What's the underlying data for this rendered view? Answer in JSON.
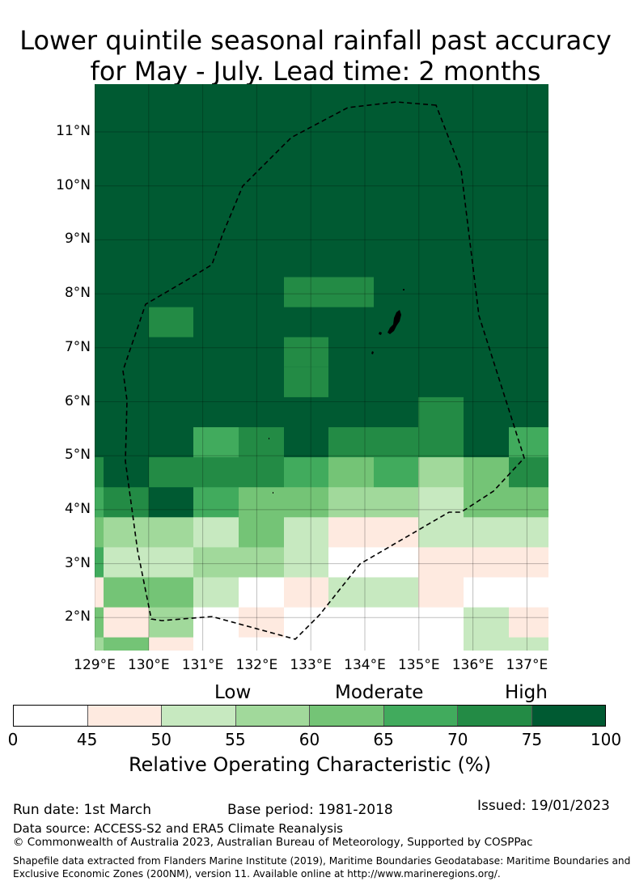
{
  "title": [
    "Lower quintile seasonal rainfall past accuracy",
    "for May - July. Lead time: 2 months"
  ],
  "axes": {
    "lat_labels": [
      "11°N",
      "10°N",
      "9°N",
      "8°N",
      "7°N",
      "6°N",
      "5°N",
      "4°N",
      "3°N",
      "2°N"
    ],
    "lon_labels": [
      "129°E",
      "130°E",
      "131°E",
      "132°E",
      "133°E",
      "134°E",
      "135°E",
      "136°E",
      "137°E"
    ]
  },
  "map": {
    "colors": [
      "#ffffff",
      "#feeae0",
      "#c7e9c0",
      "#a1d99b",
      "#74c476",
      "#41ab5d",
      "#238b45",
      "#005a32"
    ],
    "default_class": 7,
    "upper_patches": [
      {
        "row": -5,
        "cols": [
          5,
          6
        ],
        "class": 6
      },
      {
        "row": -4,
        "cols": [
          2
        ],
        "class": 6
      },
      {
        "row": -3,
        "cols": [
          5
        ],
        "class": 6
      },
      {
        "row": -2,
        "cols": [
          5
        ],
        "class": 6
      },
      {
        "row": -1,
        "cols": [
          8
        ],
        "class": 6
      }
    ],
    "grid_classes": [
      [
        7,
        7,
        7,
        5,
        6,
        7,
        6,
        6,
        6,
        7,
        5
      ],
      [
        6,
        7,
        6,
        6,
        6,
        5,
        4,
        5,
        3,
        4,
        6
      ],
      [
        5,
        6,
        7,
        5,
        4,
        4,
        3,
        3,
        2,
        4,
        4
      ],
      [
        4,
        3,
        3,
        2,
        4,
        2,
        1,
        1,
        2,
        2,
        2
      ],
      [
        5,
        2,
        2,
        3,
        3,
        2,
        0,
        0,
        1,
        1,
        1
      ],
      [
        1,
        4,
        4,
        2,
        0,
        1,
        2,
        2,
        1,
        0,
        0
      ],
      [
        4,
        1,
        3,
        0,
        1,
        0,
        0,
        0,
        0,
        2,
        1
      ],
      [
        3,
        4,
        1,
        0,
        0,
        0,
        0,
        0,
        0,
        2,
        2
      ]
    ]
  },
  "legend": {
    "categories": [
      "Low",
      "Moderate",
      "High"
    ],
    "ticks": [
      "0",
      "45",
      "50",
      "55",
      "60",
      "65",
      "70",
      "75",
      "100"
    ],
    "label": "Relative Operating Characteristic (%)"
  },
  "footer": {
    "run_date": "Run date: 1st March",
    "base_period": "Base period: 1981-2018",
    "issued": "Issued: 19/01/2023",
    "data_source": "Data source: ACCESS-S2 and ERA5 Climate Reanalysis",
    "copyright": "© Commonwealth of Australia 2023, Australian Bureau of Meteorology, Supported by COSPPac",
    "shapefile_1": "Shapefile data extracted from Flanders Marine Institute (2019), Maritime Boundaries Geodatabase: Maritime Boundaries and",
    "shapefile_2": "Exclusive Economic Zones (200NM), version 11. Available online at http://www.marineregions.org/."
  }
}
